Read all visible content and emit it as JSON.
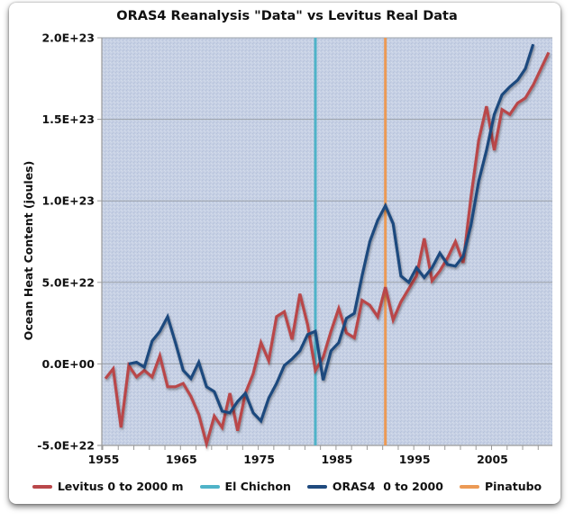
{
  "chart_data": {
    "type": "line",
    "title": "ORAS4 Reanalysis \"Data\" vs Levitus Real Data",
    "xlabel": "",
    "ylabel": "Ocean Heat Content (joules)",
    "xlim": [
      1955,
      2012
    ],
    "ylim": [
      -5e+22,
      2e+23
    ],
    "x_tick_labels": [
      "1955",
      "1965",
      "1975",
      "1985",
      "1995",
      "2005"
    ],
    "x_tick_values": [
      1955,
      1965,
      1975,
      1985,
      1995,
      2005
    ],
    "y_tick_labels": [
      "-5.0E+22",
      "0.0E+00",
      "5.0E+22",
      "1.0E+23",
      "1.5E+23",
      "2.0E+23"
    ],
    "y_tick_values": [
      -5e+22,
      0,
      5e+22,
      1e+23,
      1.5e+23,
      2e+23
    ],
    "grid": "horizontal",
    "legend_position": "bottom",
    "series": [
      {
        "name": "Levitus 0 to 2000 m",
        "color": "#b9474a",
        "x": [
          1955,
          1956,
          1957,
          1958,
          1959,
          1960,
          1961,
          1962,
          1963,
          1964,
          1965,
          1966,
          1967,
          1968,
          1969,
          1970,
          1971,
          1972,
          1973,
          1974,
          1975,
          1976,
          1977,
          1978,
          1979,
          1980,
          1981,
          1982,
          1983,
          1984,
          1985,
          1986,
          1987,
          1988,
          1989,
          1990,
          1991,
          1992,
          1993,
          1994,
          1995,
          1996,
          1997,
          1998,
          1999,
          2000,
          2001,
          2002,
          2003,
          2004,
          2005,
          2006,
          2007,
          2008,
          2009,
          2010,
          2011,
          2012
        ],
        "values": [
          -9e+21,
          -3e+21,
          -3.9e+22,
          -1e+21,
          -8e+21,
          -4e+21,
          -8e+21,
          5e+21,
          -1.4e+22,
          -1.4e+22,
          -1.2e+22,
          -2e+22,
          -3.1e+22,
          -4.9e+22,
          -3.2e+22,
          -3.9e+22,
          -1.8e+22,
          -4.1e+22,
          -1.8e+22,
          -6e+21,
          1.3e+22,
          2e+21,
          2.9e+22,
          3.2e+22,
          1.5e+22,
          4.3e+22,
          2.4e+22,
          -4e+21,
          4e+21,
          2e+22,
          3.4e+22,
          1.9e+22,
          1.6e+22,
          3.9e+22,
          3.6e+22,
          2.9e+22,
          4.7e+22,
          2.7e+22,
          3.8e+22,
          4.6e+22,
          5.4e+22,
          7.7e+22,
          5.1e+22,
          5.7e+22,
          6.5e+22,
          7.5e+22,
          6.2e+22,
          1.02e+23,
          1.37e+23,
          1.58e+23,
          1.31e+23,
          1.56e+23,
          1.53e+23,
          1.6e+23,
          1.63e+23,
          1.71e+23,
          1.81e+23,
          1.91e+23
        ]
      },
      {
        "name": "El Chichon",
        "color": "#4fb3c8",
        "type": "vertical-line",
        "x": 1982
      },
      {
        "name": "ORAS4  0 to 2000",
        "color": "#1f4a7e",
        "x": [
          1958,
          1959,
          1960,
          1961,
          1962,
          1963,
          1964,
          1965,
          1966,
          1967,
          1968,
          1969,
          1970,
          1971,
          1972,
          1973,
          1974,
          1975,
          1976,
          1977,
          1978,
          1979,
          1980,
          1981,
          1982,
          1983,
          1984,
          1985,
          1986,
          1987,
          1988,
          1989,
          1990,
          1991,
          1992,
          1993,
          1994,
          1995,
          1996,
          1997,
          1998,
          1999,
          2000,
          2001,
          2002,
          2003,
          2004,
          2005,
          2006,
          2007,
          2008,
          2009,
          2010
        ],
        "values": [
          0.0,
          1e+21,
          -2e+21,
          1.4e+22,
          2e+22,
          2.9e+22,
          1.3e+22,
          -4e+21,
          -9e+21,
          1e+21,
          -1.4e+22,
          -1.7e+22,
          -2.9e+22,
          -3e+22,
          -2.3e+22,
          -1.8e+22,
          -3e+22,
          -3.5e+22,
          -2.1e+22,
          -1.2e+22,
          -1e+21,
          3e+21,
          8e+21,
          1.8e+22,
          2e+22,
          -1e+22,
          8e+21,
          1.3e+22,
          2.8e+22,
          3.1e+22,
          5.4e+22,
          7.5e+22,
          8.8e+22,
          9.7e+22,
          8.6e+22,
          5.4e+22,
          5e+22,
          5.9e+22,
          5.3e+22,
          5.9e+22,
          6.8e+22,
          6.1e+22,
          6e+22,
          6.6e+22,
          8.5e+22,
          1.12e+23,
          1.31e+23,
          1.53e+23,
          1.65e+23,
          1.7e+23,
          1.74e+23,
          1.81e+23,
          1.96e+23
        ]
      },
      {
        "name": "Pinatubo",
        "color": "#ec9a55",
        "type": "vertical-line",
        "x": 1991
      }
    ]
  },
  "colors": {
    "plot_background": "#c6d0e4",
    "gridline": "#9aa0a8"
  }
}
